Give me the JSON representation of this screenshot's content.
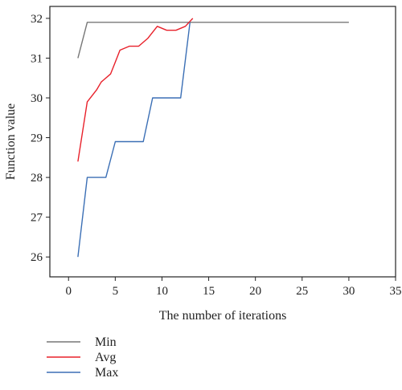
{
  "chart_data": {
    "type": "line",
    "title": "",
    "xlabel": "The number of iterations",
    "ylabel": "Function value",
    "xlim": [
      -2,
      35
    ],
    "ylim": [
      25.5,
      32.3
    ],
    "xticks": [
      "0",
      "5",
      "10",
      "15",
      "20",
      "25",
      "30",
      "35"
    ],
    "yticks": [
      "26",
      "27",
      "28",
      "29",
      "30",
      "31",
      "32"
    ],
    "grid": false,
    "legend_position": "bottom-left",
    "series": [
      {
        "name": "Min",
        "color": "#777777",
        "points": [
          [
            1,
            31.0
          ],
          [
            2,
            31.9
          ],
          [
            3,
            31.9
          ],
          [
            5,
            31.9
          ],
          [
            10,
            31.9
          ],
          [
            15,
            31.9
          ],
          [
            20,
            31.9
          ],
          [
            25,
            31.9
          ],
          [
            30,
            31.9
          ]
        ]
      },
      {
        "name": "Avg",
        "color": "#e8202a",
        "points": [
          [
            1,
            28.4
          ],
          [
            2,
            29.9
          ],
          [
            3,
            30.2
          ],
          [
            3.5,
            30.4
          ],
          [
            4.5,
            30.6
          ],
          [
            5,
            30.9
          ],
          [
            5.5,
            31.2
          ],
          [
            6.5,
            31.3
          ],
          [
            7.5,
            31.3
          ],
          [
            8.5,
            31.5
          ],
          [
            9.5,
            31.8
          ],
          [
            10.5,
            31.7
          ],
          [
            11.5,
            31.7
          ],
          [
            12.5,
            31.8
          ],
          [
            13.3,
            32.0
          ]
        ]
      },
      {
        "name": "Max",
        "color": "#3b6fb5",
        "points": [
          [
            1,
            26.0
          ],
          [
            2,
            28.0
          ],
          [
            3,
            28.0
          ],
          [
            4,
            28.0
          ],
          [
            5,
            28.9
          ],
          [
            6,
            28.9
          ],
          [
            7,
            28.9
          ],
          [
            8,
            28.9
          ],
          [
            9,
            30.0
          ],
          [
            10,
            30.0
          ],
          [
            11,
            30.0
          ],
          [
            12,
            30.0
          ],
          [
            13,
            31.9
          ]
        ]
      }
    ]
  }
}
